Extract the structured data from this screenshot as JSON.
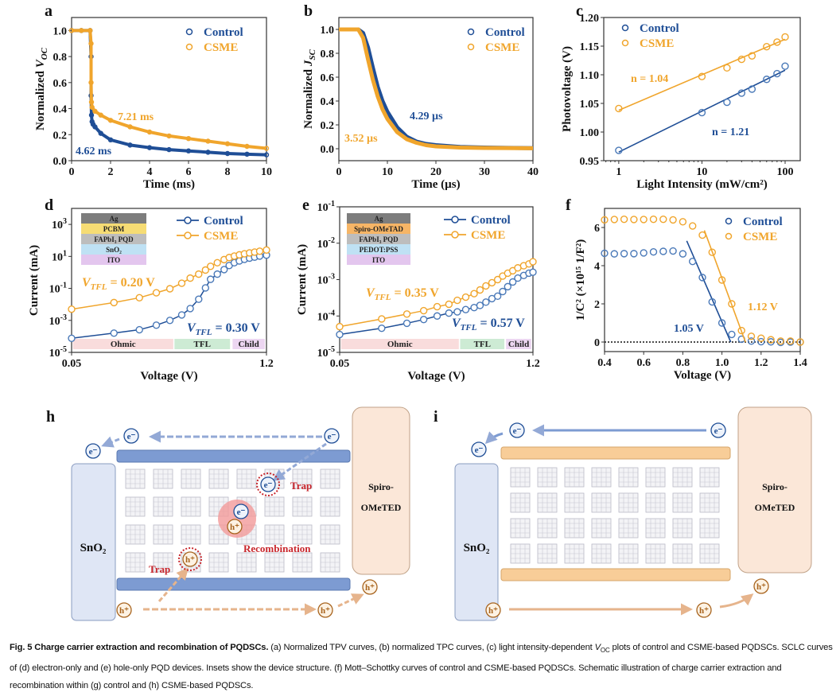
{
  "colors": {
    "control": "#1f4e96",
    "csme": "#f0a52c",
    "trap": "#c8262c"
  },
  "chart_data": [
    {
      "id": "a",
      "panel": "a",
      "type": "scatter",
      "xlabel": "Time (ms)",
      "ylabel": "Normalized ",
      "ylabel_var": "V",
      "ylabel_sub": "OC",
      "xlim": [
        0,
        10
      ],
      "ylim": [
        0,
        1.1
      ],
      "xticks": [
        0,
        2,
        4,
        6,
        8,
        10
      ],
      "xtick_labels": [
        "0",
        "2",
        "4",
        "6",
        "8",
        "10"
      ],
      "yticks": [
        0,
        0.2,
        0.4,
        0.6,
        0.8,
        1.0
      ],
      "ytick_labels": [
        "0.0",
        "0.2",
        "0.4",
        "0.6",
        "0.8",
        "1.0"
      ],
      "legend": "top-right",
      "style": "dense",
      "series": [
        {
          "name": "Control",
          "color": "control",
          "x": [
            0,
            0.5,
            0.95,
            1.0,
            1.0,
            1.02,
            1.05,
            1.1,
            1.2,
            1.5,
            2,
            3,
            4,
            5,
            6,
            7,
            8,
            9,
            10
          ],
          "y": [
            1.0,
            1.0,
            1.0,
            0.8,
            0.5,
            0.35,
            0.3,
            0.28,
            0.26,
            0.21,
            0.16,
            0.12,
            0.1,
            0.085,
            0.075,
            0.065,
            0.055,
            0.05,
            0.045
          ]
        },
        {
          "name": "CSME",
          "color": "csme",
          "x": [
            0,
            0.5,
            0.95,
            1.0,
            1.0,
            1.02,
            1.05,
            1.2,
            1.5,
            2,
            3,
            4,
            5,
            6,
            7,
            8,
            9,
            10
          ],
          "y": [
            1.0,
            1.0,
            1.0,
            0.9,
            0.6,
            0.45,
            0.41,
            0.38,
            0.35,
            0.31,
            0.26,
            0.22,
            0.19,
            0.17,
            0.15,
            0.13,
            0.11,
            0.095
          ]
        }
      ],
      "annotations": [
        {
          "text": "7.21 ms",
          "color": "csme"
        },
        {
          "text": "4.62 ms",
          "color": "control"
        }
      ]
    },
    {
      "id": "b",
      "panel": "b",
      "type": "line",
      "xlabel": "Time (µs)",
      "ylabel": "Normalized ",
      "ylabel_var": "J",
      "ylabel_sub": "SC",
      "xlim": [
        0,
        40
      ],
      "ylim": [
        -0.1,
        1.1
      ],
      "xticks": [
        0,
        10,
        20,
        30,
        40
      ],
      "xtick_labels": [
        "0",
        "10",
        "20",
        "30",
        "40"
      ],
      "yticks": [
        0,
        0.2,
        0.4,
        0.6,
        0.8,
        1.0
      ],
      "ytick_labels": [
        "0.0",
        "0.2",
        "0.4",
        "0.6",
        "0.8",
        "1.0"
      ],
      "legend": "top-right",
      "style": "thick",
      "series": [
        {
          "name": "Control",
          "color": "control",
          "x": [
            0,
            4,
            5,
            6,
            7,
            8,
            9,
            10,
            12,
            14,
            16,
            18,
            20,
            25,
            30,
            40
          ],
          "y": [
            1.0,
            1.0,
            0.97,
            0.85,
            0.68,
            0.52,
            0.4,
            0.31,
            0.18,
            0.1,
            0.06,
            0.04,
            0.03,
            0.015,
            0.01,
            0.005
          ]
        },
        {
          "name": "CSME",
          "color": "csme",
          "x": [
            0,
            4,
            5,
            6,
            7,
            8,
            9,
            10,
            12,
            14,
            16,
            18,
            20,
            25,
            30,
            40
          ],
          "y": [
            1.0,
            1.0,
            0.93,
            0.75,
            0.58,
            0.44,
            0.33,
            0.25,
            0.14,
            0.08,
            0.05,
            0.03,
            0.02,
            0.01,
            0.007,
            0.004
          ]
        }
      ],
      "annotations": [
        {
          "text": "4.29 µs",
          "color": "control"
        },
        {
          "text": "3.52 µs",
          "color": "csme"
        }
      ]
    },
    {
      "id": "c",
      "panel": "c",
      "type": "scatter",
      "xlabel": "Light Intensity (mW/cm²)",
      "ylabel": "Photovoltage (V)",
      "xscale": "log",
      "xlim": [
        0.66,
        152
      ],
      "ylim": [
        0.95,
        1.2
      ],
      "xticks": [
        1,
        10,
        100
      ],
      "xtick_labels": [
        "1",
        "10",
        "100"
      ],
      "yticks": [
        0.95,
        1.0,
        1.05,
        1.1,
        1.15,
        1.2
      ],
      "ytick_labels": [
        "0.95",
        "1.00",
        "1.05",
        "1.10",
        "1.15",
        "1.20"
      ],
      "legend": "top-left",
      "style": "markers",
      "series": [
        {
          "name": "Control",
          "color": "control",
          "x": [
            1,
            10,
            20,
            30,
            40,
            60,
            80,
            100
          ],
          "y": [
            0.968,
            1.034,
            1.052,
            1.068,
            1.075,
            1.092,
            1.102,
            1.115
          ],
          "fit": [
            [
              1,
              0.965
            ],
            [
              100,
              1.108
            ]
          ]
        },
        {
          "name": "CSME",
          "color": "csme",
          "x": [
            1,
            10,
            20,
            30,
            40,
            60,
            80,
            100
          ],
          "y": [
            1.041,
            1.097,
            1.112,
            1.127,
            1.133,
            1.149,
            1.157,
            1.166
          ],
          "fit": [
            [
              1,
              1.038
            ],
            [
              100,
              1.162
            ]
          ]
        }
      ],
      "annotations": [
        {
          "text": "n = 1.04",
          "color": "csme"
        },
        {
          "text": "n = 1.21",
          "color": "control"
        }
      ]
    },
    {
      "id": "d",
      "panel": "d",
      "type": "line",
      "xlabel": "Voltage (V)",
      "ylabel": "Current (mA)",
      "yscale": "log",
      "xlim": [
        0.05,
        1.2
      ],
      "ylim": [
        1e-05,
        10000.0
      ],
      "xticks": [
        0.05,
        1.2
      ],
      "xtick_labels": [
        "0.05",
        "1.2"
      ],
      "yticks": [
        1e-05,
        0.001,
        0.1,
        10.0,
        1000.0
      ],
      "ytick_base": "10",
      "ytick_exponents": [
        "-5",
        "-3",
        "-1",
        "1",
        "3"
      ],
      "legend": "top-right",
      "style": "line_markers",
      "inset_layers": [
        {
          "label": "Ag",
          "color": "#7d7d7d"
        },
        {
          "label": "PCBM",
          "color": "#f6dc74"
        },
        {
          "label": "FAPbI₃ PQD",
          "color": "#bdbdbd"
        },
        {
          "label": "SnO₂",
          "color": "#bfe1f4"
        },
        {
          "label": "ITO",
          "color": "#e3c6ee"
        }
      ],
      "regions": [
        {
          "label": "Ohmic",
          "from": 0.058,
          "to": 0.65,
          "color": "#f9dcdc"
        },
        {
          "label": "TFL",
          "from": 0.657,
          "to": 0.985,
          "color": "#cdebd4"
        },
        {
          "label": "Child",
          "from": 1.0,
          "to": 1.19,
          "color": "#ecd6f1"
        }
      ],
      "series": [
        {
          "name": "Control",
          "color": "control",
          "x": [
            0.05,
            0.3,
            0.45,
            0.55,
            0.63,
            0.7,
            0.75,
            0.8,
            0.84,
            0.87,
            0.91,
            0.95,
            0.98,
            1.01,
            1.04,
            1.07,
            1.1,
            1.13,
            1.16,
            1.2
          ],
          "y": [
            7.6e-05,
            0.00016,
            0.00026,
            0.0005,
            0.001,
            0.0022,
            0.0055,
            0.021,
            0.107,
            0.37,
            0.78,
            1.5,
            2.7,
            4.0,
            5.2,
            6.5,
            7.8,
            9.0,
            10.5,
            12
          ]
        },
        {
          "name": "CSME",
          "color": "csme",
          "x": [
            0.05,
            0.3,
            0.45,
            0.55,
            0.63,
            0.7,
            0.75,
            0.8,
            0.84,
            0.87,
            0.91,
            0.95,
            0.98,
            1.01,
            1.04,
            1.07,
            1.1,
            1.13,
            1.16,
            1.2
          ],
          "y": [
            0.005,
            0.013,
            0.026,
            0.053,
            0.095,
            0.21,
            0.44,
            0.78,
            1.4,
            2.4,
            4.0,
            6.3,
            8.5,
            10.5,
            12.5,
            14.5,
            16.5,
            18.5,
            21,
            25
          ]
        }
      ],
      "annotations": [
        {
          "var": "V",
          "sub": "TFL",
          "text": " = 0.20 V",
          "color": "csme"
        },
        {
          "var": "V",
          "sub": "TFL",
          "text": " = 0.30 V",
          "color": "control"
        }
      ]
    },
    {
      "id": "e",
      "panel": "e",
      "type": "line",
      "xlabel": "Voltage (V)",
      "ylabel": "Current (mA)",
      "yscale": "log",
      "xlim": [
        0.05,
        1.2
      ],
      "ylim": [
        1e-05,
        0.1
      ],
      "xticks": [
        0.05,
        1.2
      ],
      "xtick_labels": [
        "0.05",
        "1.2"
      ],
      "yticks": [
        1e-05,
        0.0001,
        0.001,
        0.01,
        0.1
      ],
      "ytick_base": "10",
      "ytick_exponents": [
        "-5",
        "-4",
        "-3",
        "-2",
        "-1"
      ],
      "legend": "top-right",
      "style": "line_markers",
      "inset_layers": [
        {
          "label": "Ag",
          "color": "#7d7d7d"
        },
        {
          "label": "Spiro-OMeTAD",
          "color": "#f6b566"
        },
        {
          "label": "FAPbI₃ PQD",
          "color": "#bdbdbd"
        },
        {
          "label": "PEDOT:PSS",
          "color": "#bfe1f4"
        },
        {
          "label": "ITO",
          "color": "#e3c6ee"
        }
      ],
      "regions": [
        {
          "label": "Ohmic",
          "from": 0.058,
          "to": 0.759,
          "color": "#f9dcdc"
        },
        {
          "label": "TFL",
          "from": 0.767,
          "to": 1.03,
          "color": "#cdebd4"
        },
        {
          "label": "Child",
          "from": 1.04,
          "to": 1.19,
          "color": "#ecd6f1"
        }
      ],
      "series": [
        {
          "name": "Control",
          "color": "control",
          "x": [
            0.05,
            0.3,
            0.45,
            0.55,
            0.63,
            0.7,
            0.75,
            0.8,
            0.85,
            0.885,
            0.92,
            0.956,
            0.99,
            1.02,
            1.05,
            1.08,
            1.11,
            1.145,
            1.176,
            1.2
          ],
          "y": [
            3.1e-05,
            4.6e-05,
            6.3e-05,
            8e-05,
            0.0001,
            0.00012,
            0.00013,
            0.00015,
            0.00017,
            0.000195,
            0.00024,
            0.0003,
            0.00035,
            0.00047,
            0.00064,
            0.00086,
            0.0011,
            0.0013,
            0.0015,
            0.0016
          ]
        },
        {
          "name": "CSME",
          "color": "csme",
          "x": [
            0.05,
            0.3,
            0.45,
            0.55,
            0.63,
            0.7,
            0.75,
            0.8,
            0.85,
            0.885,
            0.92,
            0.956,
            0.99,
            1.02,
            1.05,
            1.08,
            1.11,
            1.145,
            1.176,
            1.2
          ],
          "y": [
            5.1e-05,
            8.3e-05,
            0.000113,
            0.00014,
            0.00018,
            0.00021,
            0.00027,
            0.00033,
            0.00041,
            0.00052,
            0.00067,
            0.00082,
            0.001,
            0.00125,
            0.0015,
            0.00175,
            0.0021,
            0.0024,
            0.0027,
            0.0031
          ]
        }
      ],
      "annotations": [
        {
          "var": "V",
          "sub": "TFL",
          "text": " = 0.35 V",
          "color": "csme"
        },
        {
          "var": "V",
          "sub": "TFL",
          "text": " = 0.57 V",
          "color": "control"
        }
      ]
    },
    {
      "id": "f",
      "panel": "f",
      "type": "scatter",
      "xlabel": "Voltage (V)",
      "ylabel": "1/C² (×10¹⁵ 1/F²)",
      "xlim": [
        0.4,
        1.4
      ],
      "ylim": [
        -0.5,
        7
      ],
      "xticks": [
        0.4,
        0.6,
        0.8,
        1.0,
        1.2,
        1.4
      ],
      "xtick_labels": [
        "0.4",
        "0.6",
        "0.8",
        "1.0",
        "1.2",
        "1.4"
      ],
      "yticks": [
        0,
        2,
        4,
        6
      ],
      "ytick_labels": [
        "0",
        "2",
        "4",
        "6"
      ],
      "legend": "top-right",
      "style": "markers",
      "zero_line": true,
      "series": [
        {
          "name": "Control",
          "color": "control",
          "x": [
            0.4,
            0.45,
            0.5,
            0.55,
            0.6,
            0.65,
            0.7,
            0.75,
            0.8,
            0.85,
            0.9,
            0.95,
            1.0,
            1.05,
            1.1,
            1.15,
            1.2,
            1.25,
            1.3,
            1.35,
            1.4
          ],
          "y": [
            4.65,
            4.62,
            4.63,
            4.63,
            4.67,
            4.72,
            4.75,
            4.77,
            4.62,
            4.22,
            3.38,
            2.1,
            1.0,
            0.4,
            0.15,
            0.05,
            0.02,
            0.01,
            -0.02,
            0,
            0
          ],
          "fit": [
            [
              0.82,
              5.3
            ],
            [
              1.045,
              0
            ]
          ]
        },
        {
          "name": "CSME",
          "color": "csme",
          "x": [
            0.4,
            0.45,
            0.5,
            0.55,
            0.6,
            0.65,
            0.7,
            0.75,
            0.8,
            0.85,
            0.9,
            0.95,
            1.0,
            1.05,
            1.1,
            1.15,
            1.2,
            1.25,
            1.3,
            1.35,
            1.4
          ],
          "y": [
            6.4,
            6.42,
            6.43,
            6.42,
            6.42,
            6.43,
            6.43,
            6.4,
            6.3,
            6.08,
            5.6,
            4.7,
            3.25,
            2.0,
            0.6,
            0.3,
            0.2,
            0.12,
            0.05,
            0.05,
            0
          ],
          "fit": [
            [
              0.91,
              5.85
            ],
            [
              1.12,
              0
            ]
          ]
        }
      ],
      "annotations": [
        {
          "text": "1.05 V",
          "color": "control"
        },
        {
          "text": "1.12 V",
          "color": "csme"
        }
      ]
    }
  ],
  "schematics": {
    "h": {
      "panel": "h",
      "left_layer": "SnO₂",
      "right_layer_1": "Spiro-",
      "right_layer_2": "OMeTED",
      "electron": "e⁻",
      "hole": "h⁺",
      "trap_1": "Trap",
      "trap_2": "Trap",
      "recombination": "Recombination"
    },
    "i": {
      "panel": "i",
      "left_layer": "SnO₂",
      "right_layer_1": "Spiro-",
      "right_layer_2": "OMeTED",
      "electron": "e⁻",
      "hole": "h⁺"
    }
  },
  "caption": {
    "title": "Fig. 5 Charge carrier extraction and recombination of PQDSCs.",
    "part1": " (a) Normalized TPV curves, (b) normalized TPC curves, (c) light intensity-dependent ",
    "voc_var": "V",
    "voc_sub": "OC",
    "part2": " plots of control and CSME-based PQDSCs. SCLC curves of (d) electron-only and (e) hole-only PQD devices. Insets show the device structure. (f) Mott–Schottky curves of control and CSME-based PQDSCs. Schematic illustration of charge carrier extraction and recombination within (g) control and (h) CSME-based PQDSCs."
  }
}
